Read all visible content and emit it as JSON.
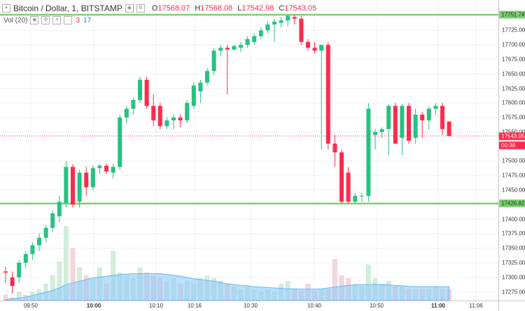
{
  "header": {
    "title": "Bitcoin / Dollar, 1, BITSTAMP",
    "open_label": "O",
    "open": "17568.07",
    "high_label": "H",
    "high": "17568.08",
    "low_label": "L",
    "low": "17542.98",
    "close_label": "C",
    "close": "17543.05"
  },
  "volume_indicator": {
    "label": "Vol (20)",
    "up_value": "3",
    "down_value": "17"
  },
  "price_axis": {
    "ticks": [
      "17725.00",
      "17700.00",
      "17675.00",
      "17650.00",
      "17625.00",
      "17600.00",
      "17575.00",
      "17550.00",
      "17500.00",
      "17475.00",
      "17450.00",
      "17400.00",
      "17375.00",
      "17350.00",
      "17325.00",
      "17300.00",
      "17275.00"
    ],
    "resistance_tag": "17751.74",
    "support_tag": "17426.82",
    "last_price_tag": "17543.05",
    "countdown": "00:38"
  },
  "time_axis": {
    "labels": [
      {
        "text": "09:50",
        "bold": false
      },
      {
        "text": "10:00",
        "bold": true
      },
      {
        "text": "10:10",
        "bold": false
      },
      {
        "text": "10:16",
        "bold": false
      },
      {
        "text": "10:30",
        "bold": false
      },
      {
        "text": "10:40",
        "bold": false
      },
      {
        "text": "10:50",
        "bold": false
      },
      {
        "text": "11:00",
        "bold": true
      },
      {
        "text": "11:06",
        "bold": false
      }
    ]
  },
  "colors": {
    "up": "#26c281",
    "down": "#ff2b4d",
    "level_line": "#7bd26f",
    "volume_ma_fill": "#90caf9",
    "vol_up_fill": "#d4eedc",
    "vol_down_fill": "#f6d6dc",
    "grid": "#eef1f4"
  },
  "chart_data": {
    "type": "candlestick",
    "ylim": [
      17260,
      17770
    ],
    "horizontal_levels": [
      17751.74,
      17426.82
    ],
    "last_price": 17543.05,
    "candles": [
      {
        "o": 17310,
        "h": 17318,
        "l": 17290,
        "c": 17308
      },
      {
        "o": 17300,
        "h": 17310,
        "l": 17272,
        "c": 17285
      },
      {
        "o": 17300,
        "h": 17330,
        "l": 17290,
        "c": 17325
      },
      {
        "o": 17325,
        "h": 17345,
        "l": 17315,
        "c": 17340
      },
      {
        "o": 17340,
        "h": 17360,
        "l": 17330,
        "c": 17355
      },
      {
        "o": 17355,
        "h": 17375,
        "l": 17345,
        "c": 17368
      },
      {
        "o": 17368,
        "h": 17390,
        "l": 17360,
        "c": 17385
      },
      {
        "o": 17385,
        "h": 17415,
        "l": 17378,
        "c": 17410
      },
      {
        "o": 17405,
        "h": 17440,
        "l": 17395,
        "c": 17430
      },
      {
        "o": 17428,
        "h": 17500,
        "l": 17420,
        "c": 17490
      },
      {
        "o": 17490,
        "h": 17495,
        "l": 17420,
        "c": 17425
      },
      {
        "o": 17430,
        "h": 17485,
        "l": 17420,
        "c": 17480
      },
      {
        "o": 17480,
        "h": 17490,
        "l": 17440,
        "c": 17455
      },
      {
        "o": 17455,
        "h": 17492,
        "l": 17450,
        "c": 17488
      },
      {
        "o": 17488,
        "h": 17495,
        "l": 17478,
        "c": 17492
      },
      {
        "o": 17492,
        "h": 17495,
        "l": 17478,
        "c": 17482
      },
      {
        "o": 17480,
        "h": 17495,
        "l": 17470,
        "c": 17490
      },
      {
        "o": 17490,
        "h": 17580,
        "l": 17485,
        "c": 17575
      },
      {
        "o": 17575,
        "h": 17595,
        "l": 17565,
        "c": 17590
      },
      {
        "o": 17590,
        "h": 17610,
        "l": 17580,
        "c": 17605
      },
      {
        "o": 17605,
        "h": 17645,
        "l": 17600,
        "c": 17640
      },
      {
        "o": 17640,
        "h": 17645,
        "l": 17590,
        "c": 17595
      },
      {
        "o": 17595,
        "h": 17615,
        "l": 17560,
        "c": 17570
      },
      {
        "o": 17595,
        "h": 17600,
        "l": 17555,
        "c": 17560
      },
      {
        "o": 17560,
        "h": 17575,
        "l": 17555,
        "c": 17570
      },
      {
        "o": 17570,
        "h": 17580,
        "l": 17555,
        "c": 17575
      },
      {
        "o": 17575,
        "h": 17580,
        "l": 17558,
        "c": 17570
      },
      {
        "o": 17570,
        "h": 17605,
        "l": 17565,
        "c": 17600
      },
      {
        "o": 17595,
        "h": 17635,
        "l": 17590,
        "c": 17630
      },
      {
        "o": 17620,
        "h": 17640,
        "l": 17600,
        "c": 17635
      },
      {
        "o": 17635,
        "h": 17660,
        "l": 17630,
        "c": 17655
      },
      {
        "o": 17655,
        "h": 17695,
        "l": 17648,
        "c": 17690
      },
      {
        "o": 17690,
        "h": 17700,
        "l": 17680,
        "c": 17695
      },
      {
        "o": 17695,
        "h": 17700,
        "l": 17615,
        "c": 17692
      },
      {
        "o": 17692,
        "h": 17700,
        "l": 17690,
        "c": 17698
      },
      {
        "o": 17695,
        "h": 17705,
        "l": 17688,
        "c": 17700
      },
      {
        "o": 17700,
        "h": 17715,
        "l": 17695,
        "c": 17710
      },
      {
        "o": 17705,
        "h": 17720,
        "l": 17700,
        "c": 17715
      },
      {
        "o": 17715,
        "h": 17730,
        "l": 17710,
        "c": 17725
      },
      {
        "o": 17725,
        "h": 17740,
        "l": 17720,
        "c": 17735
      },
      {
        "o": 17735,
        "h": 17745,
        "l": 17705,
        "c": 17740
      },
      {
        "o": 17738,
        "h": 17748,
        "l": 17730,
        "c": 17742
      },
      {
        "o": 17742,
        "h": 17752,
        "l": 17732,
        "c": 17750
      },
      {
        "o": 17748,
        "h": 17752,
        "l": 17735,
        "c": 17745
      },
      {
        "o": 17745,
        "h": 17750,
        "l": 17700,
        "c": 17705
      },
      {
        "o": 17705,
        "h": 17710,
        "l": 17690,
        "c": 17695
      },
      {
        "o": 17695,
        "h": 17705,
        "l": 17685,
        "c": 17690
      },
      {
        "o": 17690,
        "h": 17700,
        "l": 17520,
        "c": 17700
      },
      {
        "o": 17700,
        "h": 17705,
        "l": 17520,
        "c": 17530
      },
      {
        "o": 17530,
        "h": 17545,
        "l": 17490,
        "c": 17515
      },
      {
        "o": 17515,
        "h": 17520,
        "l": 17427,
        "c": 17430
      },
      {
        "o": 17480,
        "h": 17490,
        "l": 17427,
        "c": 17430
      },
      {
        "o": 17430,
        "h": 17445,
        "l": 17428,
        "c": 17440
      },
      {
        "o": 17440,
        "h": 17445,
        "l": 17430,
        "c": 17440
      },
      {
        "o": 17440,
        "h": 17600,
        "l": 17430,
        "c": 17590
      },
      {
        "o": 17545,
        "h": 17555,
        "l": 17520,
        "c": 17550
      },
      {
        "o": 17550,
        "h": 17558,
        "l": 17540,
        "c": 17555
      },
      {
        "o": 17555,
        "h": 17598,
        "l": 17510,
        "c": 17595
      },
      {
        "o": 17595,
        "h": 17600,
        "l": 17535,
        "c": 17530
      },
      {
        "o": 17540,
        "h": 17598,
        "l": 17510,
        "c": 17595
      },
      {
        "o": 17595,
        "h": 17600,
        "l": 17530,
        "c": 17535
      },
      {
        "o": 17540,
        "h": 17590,
        "l": 17530,
        "c": 17580
      },
      {
        "o": 17580,
        "h": 17585,
        "l": 17540,
        "c": 17570
      },
      {
        "o": 17570,
        "h": 17595,
        "l": 17555,
        "c": 17590
      },
      {
        "o": 17590,
        "h": 17600,
        "l": 17580,
        "c": 17595
      },
      {
        "o": 17595,
        "h": 17600,
        "l": 17545,
        "c": 17555
      },
      {
        "o": 17568.07,
        "h": 17568.08,
        "l": 17542.98,
        "c": 17543.05
      }
    ],
    "volumes": [
      2,
      1,
      3,
      2,
      3,
      4,
      6,
      9,
      14,
      27,
      19,
      12,
      9,
      8,
      12,
      6,
      18,
      10,
      9,
      8,
      12,
      10,
      9,
      8,
      7,
      8,
      6,
      7,
      6,
      8,
      9,
      8,
      7,
      6,
      5,
      4,
      5,
      4,
      3,
      4,
      3,
      6,
      7,
      4,
      3,
      6,
      3,
      4,
      4,
      15,
      9,
      8,
      6,
      5,
      13,
      8,
      6,
      7,
      5,
      5,
      4,
      4,
      4,
      4,
      5,
      4,
      4
    ],
    "volume_ma_normalized": [
      0.02,
      0.04,
      0.06,
      0.08,
      0.12,
      0.16,
      0.2,
      0.24,
      0.3,
      0.38,
      0.42,
      0.46,
      0.5,
      0.54,
      0.56,
      0.58,
      0.6,
      0.62,
      0.63,
      0.64,
      0.64,
      0.65,
      0.64,
      0.64,
      0.62,
      0.6,
      0.58,
      0.55,
      0.52,
      0.5,
      0.48,
      0.46,
      0.43,
      0.4,
      0.38,
      0.36,
      0.35,
      0.33,
      0.32,
      0.31,
      0.3,
      0.29,
      0.28,
      0.28,
      0.27,
      0.27,
      0.27,
      0.28,
      0.3,
      0.32,
      0.34,
      0.36,
      0.37,
      0.38,
      0.38,
      0.39,
      0.38,
      0.37,
      0.36,
      0.35,
      0.34,
      0.33,
      0.33,
      0.33,
      0.33,
      0.33,
      0.33
    ]
  }
}
